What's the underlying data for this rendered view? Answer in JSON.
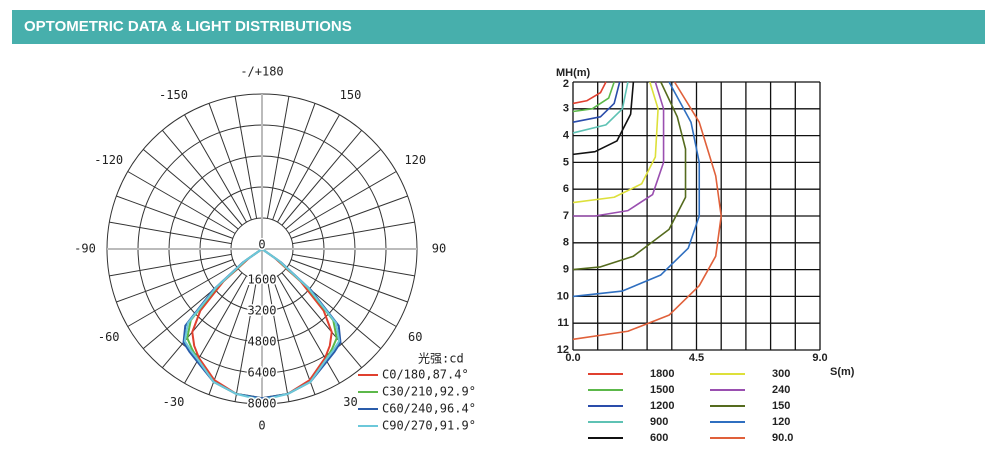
{
  "header": {
    "title": "OPTOMETRIC DATA & LIGHT DISTRIBUTIONS"
  },
  "chart_data": [
    {
      "type": "polar",
      "x": [
        -60,
        -55,
        -50,
        -45,
        -40,
        -35,
        -30,
        -20,
        -10,
        0,
        10,
        20,
        30,
        35,
        40,
        45,
        50,
        55,
        60
      ],
      "rlim": [
        0,
        8000
      ],
      "rticks": [
        0,
        1600,
        3200,
        4800,
        6400,
        8000
      ],
      "thetaticks": [
        {
          "value": 180,
          "label": "-/+180"
        },
        -150,
        150,
        -120,
        120,
        -90,
        90,
        -60,
        60,
        -30,
        30,
        0
      ],
      "angle_grid_step": 10,
      "legend_title": "光强:cd",
      "series": [
        {
          "name": "C0/180,87.4°",
          "color": "#e0402f",
          "values": [
            0,
            800,
            2600,
            4500,
            5600,
            6100,
            6500,
            7200,
            7600,
            7700,
            7600,
            7200,
            6500,
            6100,
            5600,
            4500,
            2600,
            800,
            0
          ]
        },
        {
          "name": "C30/210,92.9°",
          "color": "#5cb84a",
          "values": [
            0,
            1000,
            3000,
            5200,
            6000,
            6300,
            6600,
            7300,
            7600,
            7700,
            7600,
            7300,
            6600,
            6300,
            6000,
            5200,
            3000,
            1000,
            0
          ]
        },
        {
          "name": "C60/240,96.4°",
          "color": "#2a5caa",
          "values": [
            0,
            1200,
            3300,
            5600,
            6300,
            6500,
            6700,
            7300,
            7600,
            7700,
            7600,
            7300,
            6700,
            6500,
            6300,
            5600,
            3300,
            1200,
            0
          ]
        },
        {
          "name": "C90/270,91.9°",
          "color": "#6cc8da",
          "values": [
            0,
            1100,
            3100,
            5400,
            6200,
            6400,
            6600,
            7300,
            7600,
            7800,
            7600,
            7300,
            6600,
            6400,
            6200,
            5400,
            3100,
            1100,
            0
          ]
        }
      ]
    },
    {
      "type": "line",
      "y_label": "MH(m)",
      "x_label": "S(m)",
      "xlim": [
        0,
        9
      ],
      "xticks": [
        {
          "value": 0,
          "label": "0.0"
        },
        {
          "value": 4.5,
          "label": "4.5"
        },
        {
          "value": 9,
          "label": "9.0"
        }
      ],
      "x_grid_step": 0.9,
      "ylim": [
        2,
        12
      ],
      "yticks": [
        2,
        3,
        4,
        5,
        6,
        7,
        8,
        9,
        10,
        11,
        12
      ],
      "y_inverted": true,
      "series": [
        {
          "name": "1800",
          "color": "#e0402f",
          "x": [
            1.2,
            1.0,
            0.5,
            0
          ],
          "values": [
            2,
            2.4,
            2.7,
            2.8
          ]
        },
        {
          "name": "1500",
          "color": "#5cb84a",
          "x": [
            1.5,
            1.3,
            0.7,
            0
          ],
          "values": [
            2,
            2.6,
            3.0,
            3.1
          ]
        },
        {
          "name": "1200",
          "color": "#2a4caa",
          "x": [
            1.7,
            1.5,
            1.0,
            0
          ],
          "values": [
            2,
            2.8,
            3.3,
            3.5
          ]
        },
        {
          "name": "900",
          "color": "#5ec2b4",
          "x": [
            2.0,
            1.8,
            1.2,
            0
          ],
          "values": [
            2,
            3.0,
            3.6,
            3.9
          ]
        },
        {
          "name": "600",
          "color": "#111111",
          "x": [
            2.2,
            2.1,
            1.6,
            0.8,
            0
          ],
          "values": [
            2,
            3.2,
            4.2,
            4.6,
            4.7
          ]
        },
        {
          "name": "300",
          "color": "#dde03a",
          "x": [
            2.8,
            3.1,
            3.0,
            2.5,
            1.5,
            0
          ],
          "values": [
            2,
            3.0,
            4.8,
            5.8,
            6.3,
            6.5
          ]
        },
        {
          "name": "240",
          "color": "#9a4fb0",
          "x": [
            3.0,
            3.3,
            3.3,
            2.9,
            2.0,
            0.8,
            0
          ],
          "values": [
            2,
            3.0,
            5.0,
            6.2,
            6.8,
            7.0,
            7.0
          ]
        },
        {
          "name": "150",
          "color": "#556b1e",
          "x": [
            3.2,
            3.8,
            4.1,
            4.1,
            3.5,
            2.2,
            1.0,
            0
          ],
          "values": [
            2,
            3.3,
            4.5,
            6.3,
            7.5,
            8.5,
            8.9,
            9.0
          ]
        },
        {
          "name": "120",
          "color": "#2f6fc0",
          "x": [
            3.5,
            4.3,
            4.6,
            4.6,
            4.2,
            3.2,
            1.8,
            0
          ],
          "values": [
            2,
            3.5,
            5.0,
            7.0,
            8.2,
            9.2,
            9.8,
            10.0
          ]
        },
        {
          "name": "90.0",
          "color": "#e0603a",
          "x": [
            3.7,
            4.6,
            4.9,
            5.2,
            5.4,
            5.2,
            4.6,
            3.5,
            2.0,
            0
          ],
          "values": [
            2,
            3.5,
            4.5,
            5.5,
            7.0,
            8.5,
            9.6,
            10.7,
            11.3,
            11.6
          ]
        }
      ]
    }
  ]
}
